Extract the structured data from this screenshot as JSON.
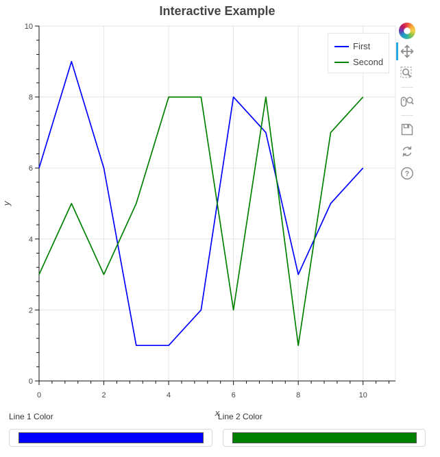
{
  "title": "Interactive Example",
  "chart_data": {
    "type": "line",
    "title": "Interactive Example",
    "xlabel": "x",
    "ylabel": "y",
    "x": [
      0,
      1,
      2,
      3,
      4,
      5,
      6,
      7,
      8,
      9,
      10
    ],
    "series": [
      {
        "name": "First",
        "color": "#0000ff",
        "values": [
          6,
          9,
          6,
          1,
          1,
          2,
          8,
          7,
          3,
          5,
          6
        ]
      },
      {
        "name": "Second",
        "color": "#008000",
        "values": [
          3,
          5,
          3,
          5,
          8,
          8,
          2,
          8,
          1,
          7,
          8
        ]
      }
    ],
    "x_range": [
      0,
      11.0
    ],
    "y_range": [
      0,
      10
    ],
    "x_ticks": [
      0,
      2,
      4,
      6,
      8,
      10
    ],
    "y_ticks": [
      0,
      2,
      4,
      6,
      8,
      10
    ],
    "minor_tick_interval": 0.4,
    "grid": true,
    "legend_position": "top-right"
  },
  "legend": {
    "items": [
      {
        "label": "First",
        "color": "#0000ff"
      },
      {
        "label": "Second",
        "color": "#008000"
      }
    ]
  },
  "toolbar": {
    "logo": "bokeh-logo",
    "active_tool": "pan",
    "active_indicator_color": "#26aae1",
    "tools": [
      {
        "name": "pan",
        "icon": "move-arrows-icon",
        "active": true
      },
      {
        "name": "box-zoom",
        "icon": "magnifier-in-dashed-box-icon",
        "active": false
      },
      {
        "name": "wheel-zoom",
        "icon": "mouse-wheel-magnifier-icon",
        "active": false
      },
      {
        "name": "save",
        "icon": "floppy-disk-icon",
        "active": false
      },
      {
        "name": "reset",
        "icon": "refresh-arrows-icon",
        "active": false
      },
      {
        "name": "help",
        "icon": "question-mark-icon",
        "active": false
      }
    ]
  },
  "controls": {
    "pickers": [
      {
        "label": "Line 1 Color",
        "value": "#0000ff"
      },
      {
        "label": "Line 2 Color",
        "value": "#008000"
      }
    ]
  },
  "colors": {
    "grid": "#e5e5e5",
    "outline": "#e5e5e5",
    "axis": "#111111",
    "tick_label": "#444444",
    "axis_label": "#444444",
    "title": "#444444"
  }
}
